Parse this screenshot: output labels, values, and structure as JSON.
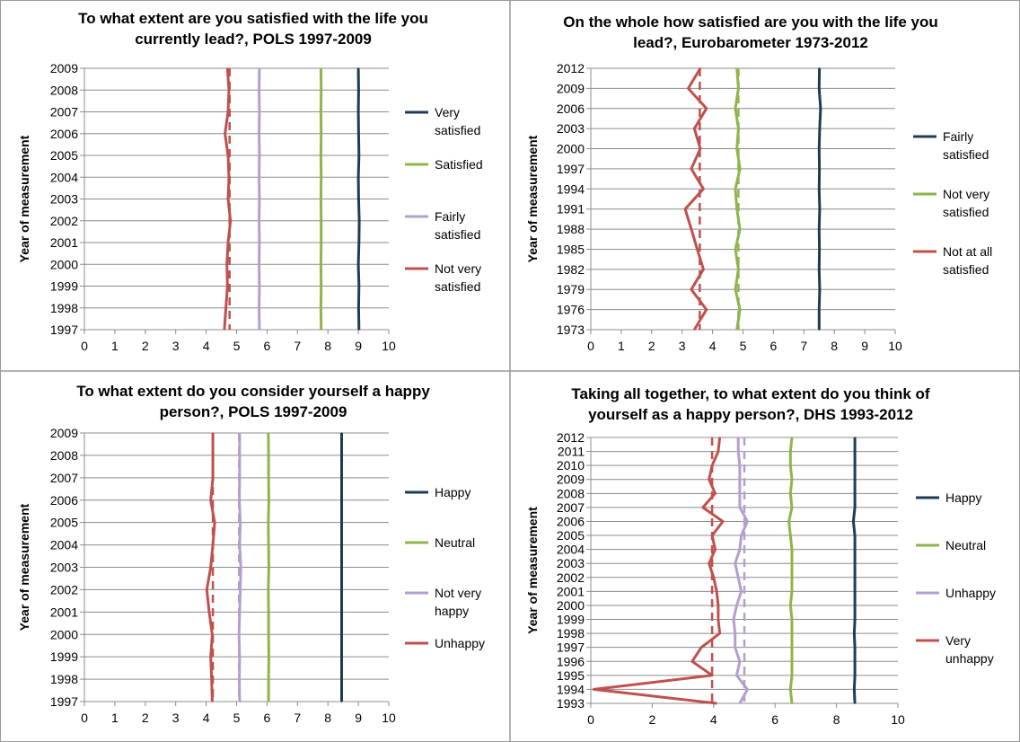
{
  "chart_data": [
    {
      "type": "line",
      "orientation": "horizontal-time",
      "title": "To what extent are you satisfied with the life you currently lead?, POLS 1997-2009",
      "title_lines": [
        "To what extent are you satisfied with the life you",
        "currently lead?, POLS 1997-2009"
      ],
      "ylabel": "Year of measurement",
      "xlim": [
        0,
        10
      ],
      "xticks": [
        0,
        1,
        2,
        3,
        4,
        5,
        6,
        7,
        8,
        9,
        10
      ],
      "categories": [
        "1997",
        "1998",
        "1999",
        "2000",
        "2001",
        "2002",
        "2003",
        "2004",
        "2005",
        "2006",
        "2007",
        "2008",
        "2009"
      ],
      "series": [
        {
          "name": "Very satisfied",
          "color": "#1f3b57",
          "values": [
            9.02,
            9.01,
            9.02,
            9.0,
            9.02,
            9.03,
            9.01,
            9.0,
            9.02,
            9.01,
            9.0,
            9.01,
            9.0
          ]
        },
        {
          "name": "Satisfied",
          "color": "#8db54b",
          "values": [
            7.78,
            7.77,
            7.78,
            7.77,
            7.78,
            7.78,
            7.77,
            7.78,
            7.77,
            7.78,
            7.77,
            7.78,
            7.77
          ]
        },
        {
          "name": "Fairly satisfied",
          "color": "#b39fcf",
          "values": [
            5.75,
            5.74,
            5.75,
            5.74,
            5.75,
            5.74,
            5.75,
            5.74,
            5.75,
            5.74,
            5.75,
            5.74,
            5.75
          ]
        },
        {
          "name": "Not very satisfied",
          "color": "#c0504d",
          "values": [
            4.6,
            4.65,
            4.7,
            4.68,
            4.72,
            4.8,
            4.72,
            4.75,
            4.72,
            4.62,
            4.72,
            4.75,
            4.7
          ]
        }
      ],
      "dashed_means": [
        {
          "color": "#c0504d",
          "value": 4.77
        }
      ],
      "legend": [
        {
          "lines": [
            "Very",
            "satisfied"
          ],
          "color": "#1f3b57"
        },
        {
          "lines": [
            "Satisfied"
          ],
          "color": "#8db54b"
        },
        {
          "lines": [
            "Fairly",
            "satisfied"
          ],
          "color": "#b39fcf"
        },
        {
          "lines": [
            "Not very",
            "satisfied"
          ],
          "color": "#c0504d"
        }
      ]
    },
    {
      "type": "line",
      "orientation": "horizontal-time",
      "title": "On the whole how satisfied are you with the life you lead?, Eurobarometer 1973-2012",
      "title_lines": [
        "On the whole how satisfied are you with the life you",
        "lead?, Eurobarometer 1973-2012"
      ],
      "ylabel": "Year of measurement",
      "xlim": [
        0,
        10
      ],
      "xticks": [
        0,
        1,
        2,
        3,
        4,
        5,
        6,
        7,
        8,
        9,
        10
      ],
      "categories": [
        "1973",
        "1976",
        "1979",
        "1982",
        "1985",
        "1988",
        "1991",
        "1994",
        "1997",
        "2000",
        "2003",
        "2006",
        "2009",
        "2012"
      ],
      "series": [
        {
          "name": "Fairly satisfied",
          "color": "#1f3b57",
          "values": [
            7.5,
            7.5,
            7.52,
            7.5,
            7.51,
            7.5,
            7.52,
            7.5,
            7.51,
            7.5,
            7.52,
            7.55,
            7.5,
            7.51
          ]
        },
        {
          "name": "Not very satisfied",
          "color": "#8db54b",
          "values": [
            4.8,
            4.9,
            4.75,
            4.85,
            4.75,
            4.9,
            4.8,
            4.75,
            4.9,
            4.8,
            4.85,
            4.75,
            4.85,
            4.8
          ]
        },
        {
          "name": "Not at all satisfied",
          "color": "#c0504d",
          "values": [
            3.4,
            3.8,
            3.3,
            3.7,
            3.5,
            3.3,
            3.1,
            3.7,
            3.3,
            3.6,
            3.4,
            3.8,
            3.2,
            3.6
          ]
        }
      ],
      "dashed_means": [
        {
          "color": "#c0504d",
          "value": 3.58
        },
        {
          "color": "#8db54b",
          "value": 4.85
        }
      ],
      "legend": [
        {
          "lines": [
            "Fairly",
            "satisfied"
          ],
          "color": "#1f3b57"
        },
        {
          "lines": [
            "Not very",
            "satisfied"
          ],
          "color": "#8db54b"
        },
        {
          "lines": [
            "Not at all",
            "satisfied"
          ],
          "color": "#c0504d"
        }
      ]
    },
    {
      "type": "line",
      "orientation": "horizontal-time",
      "title": "To what extent do you consider yourself a happy person?, POLS 1997-2009",
      "title_lines": [
        "To what extent do you consider yourself a happy",
        "person?, POLS 1997-2009"
      ],
      "ylabel": "Year of measurement",
      "xlim": [
        0,
        10
      ],
      "xticks": [
        0,
        1,
        2,
        3,
        4,
        5,
        6,
        7,
        8,
        9,
        10
      ],
      "categories": [
        "1997",
        "1998",
        "1999",
        "2000",
        "2001",
        "2002",
        "2003",
        "2004",
        "2005",
        "2006",
        "2007",
        "2008",
        "2009"
      ],
      "series": [
        {
          "name": "Happy",
          "color": "#1f3b57",
          "values": [
            8.45,
            8.45,
            8.45,
            8.45,
            8.45,
            8.45,
            8.45,
            8.45,
            8.45,
            8.45,
            8.45,
            8.45,
            8.45
          ]
        },
        {
          "name": "Neutral",
          "color": "#8db54b",
          "values": [
            6.05,
            6.05,
            6.06,
            6.05,
            6.05,
            6.04,
            6.06,
            6.05,
            6.04,
            6.06,
            6.05,
            6.05,
            6.04
          ]
        },
        {
          "name": "Not very happy",
          "color": "#b39fcf",
          "values": [
            5.1,
            5.09,
            5.1,
            5.08,
            5.1,
            5.12,
            5.14,
            5.1,
            5.12,
            5.09,
            5.1,
            5.1,
            5.1
          ]
        },
        {
          "name": "Unhappy",
          "color": "#c0504d",
          "values": [
            4.2,
            4.18,
            4.15,
            4.2,
            4.1,
            4.02,
            4.15,
            4.22,
            4.28,
            4.15,
            4.22,
            4.22,
            4.22
          ]
        }
      ],
      "dashed_means": [
        {
          "color": "#c0504d",
          "value": 4.22
        },
        {
          "color": "#b39fcf",
          "value": 5.08
        }
      ],
      "legend": [
        {
          "lines": [
            "Happy"
          ],
          "color": "#1f3b57"
        },
        {
          "lines": [
            "Neutral"
          ],
          "color": "#8db54b"
        },
        {
          "lines": [
            "Not very",
            "happy"
          ],
          "color": "#b39fcf"
        },
        {
          "lines": [
            "Unhappy"
          ],
          "color": "#c0504d"
        }
      ]
    },
    {
      "type": "line",
      "orientation": "horizontal-time",
      "title": "Taking all together, to what extent do you think of yourself as a happy person?, DHS 1993-2012",
      "title_lines": [
        "Taking all together, to what extent do you think of",
        "yourself as a happy person?, DHS 1993-2012"
      ],
      "ylabel": "Year of measurement",
      "xlim": [
        0,
        10
      ],
      "xticks": [
        0,
        2,
        4,
        6,
        8,
        10
      ],
      "categories": [
        "1993",
        "1994",
        "1995",
        "1996",
        "1997",
        "1998",
        "1999",
        "2000",
        "2001",
        "2002",
        "2003",
        "2004",
        "2005",
        "2006",
        "2007",
        "2008",
        "2009",
        "2010",
        "2011",
        "2012"
      ],
      "series": [
        {
          "name": "Happy",
          "color": "#1f3b57",
          "values": [
            8.6,
            8.58,
            8.6,
            8.6,
            8.6,
            8.58,
            8.6,
            8.6,
            8.6,
            8.6,
            8.6,
            8.6,
            8.6,
            8.55,
            8.6,
            8.6,
            8.6,
            8.6,
            8.6,
            8.6
          ]
        },
        {
          "name": "Neutral",
          "color": "#8db54b",
          "values": [
            6.55,
            6.5,
            6.55,
            6.55,
            6.55,
            6.55,
            6.55,
            6.5,
            6.55,
            6.55,
            6.55,
            6.55,
            6.5,
            6.45,
            6.55,
            6.5,
            6.55,
            6.5,
            6.5,
            6.55
          ]
        },
        {
          "name": "Unhappy",
          "color": "#b39fcf",
          "values": [
            4.85,
            5.1,
            4.75,
            4.85,
            4.7,
            4.7,
            4.65,
            4.75,
            4.9,
            4.8,
            4.7,
            4.85,
            4.9,
            5.1,
            4.85,
            4.85,
            4.85,
            4.85,
            4.8,
            4.8
          ]
        },
        {
          "name": "Very unhappy",
          "color": "#c0504d",
          "values": [
            4.1,
            0.1,
            3.95,
            3.3,
            3.6,
            4.2,
            4.15,
            4.15,
            4.1,
            4.0,
            3.85,
            4.05,
            3.95,
            4.3,
            3.65,
            4.05,
            3.85,
            3.95,
            4.15,
            4.2
          ]
        }
      ],
      "dashed_means": [
        {
          "color": "#c0504d",
          "value": 3.95
        },
        {
          "color": "#b39fcf",
          "value": 5.0
        }
      ],
      "legend": [
        {
          "lines": [
            "Happy"
          ],
          "color": "#1f3b57"
        },
        {
          "lines": [
            "Neutral"
          ],
          "color": "#8db54b"
        },
        {
          "lines": [
            "Unhappy"
          ],
          "color": "#b39fcf"
        },
        {
          "lines": [
            "Very",
            "unhappy"
          ],
          "color": "#c0504d"
        }
      ]
    }
  ]
}
